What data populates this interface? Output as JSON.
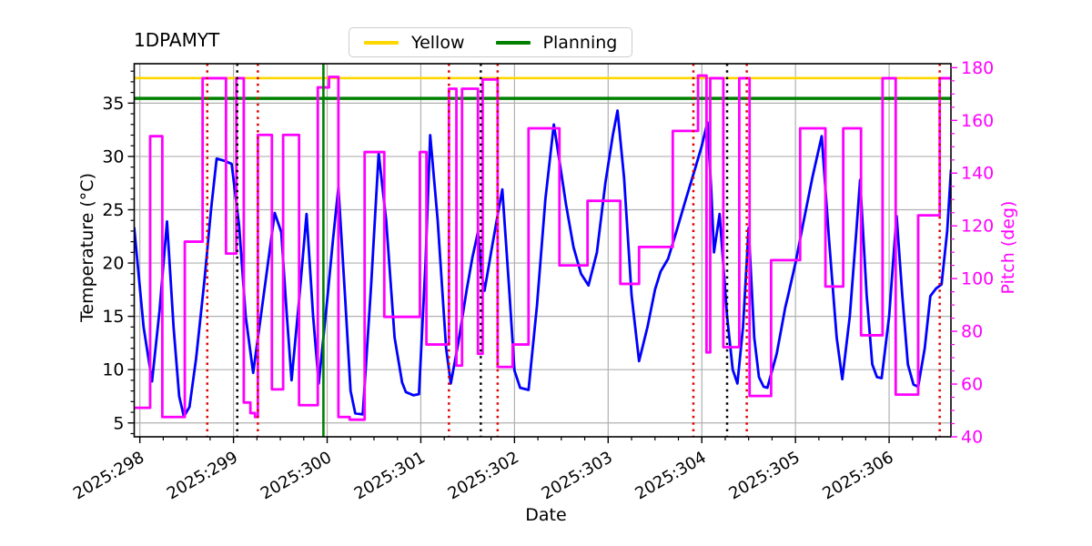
{
  "figure": {
    "title": "1DPAMYT"
  },
  "legend": {
    "entries": [
      {
        "label": "Yellow",
        "color": "#ffd700"
      },
      {
        "label": "Planning",
        "color": "#008000"
      }
    ]
  },
  "chart_data": {
    "type": "line",
    "title": "1DPAMYT",
    "xlabel": "Date",
    "x_axis": {
      "label": "Date",
      "range": [
        297.94,
        306.66
      ],
      "major_ticks": [
        298,
        299,
        300,
        301,
        302,
        303,
        304,
        305,
        306
      ],
      "tick_labels": [
        "2025:298",
        "2025:299",
        "2025:300",
        "2025:301",
        "2025:302",
        "2025:303",
        "2025:304",
        "2025:305",
        "2025:306"
      ],
      "minor_step": 0.25,
      "tick_rotation": -30
    },
    "y_left": {
      "label": "Temperature (°C)",
      "color": "#000000",
      "range": [
        3.7,
        38.7
      ],
      "major_ticks": [
        5,
        10,
        15,
        20,
        25,
        30,
        35
      ],
      "minor_step": 1
    },
    "y_right": {
      "label": "Pitch (deg)",
      "color": "#ff00ff",
      "range": [
        40,
        181.5
      ],
      "major_ticks": [
        40,
        60,
        80,
        100,
        120,
        140,
        160,
        180
      ],
      "minor_step": 5
    },
    "grid": {
      "show": true,
      "color": "#b0b0b0"
    },
    "hlines": [
      {
        "name": "yellow-limit",
        "label": "Yellow",
        "axis": "left",
        "y": 37.35,
        "color": "#ffd700",
        "width": 2.6,
        "style": "solid"
      },
      {
        "name": "planning-limit",
        "label": "Planning",
        "axis": "left",
        "y": 35.45,
        "color": "#008000",
        "width": 3.5,
        "style": "solid"
      }
    ],
    "vlines": [
      {
        "x": 299.96,
        "color": "#008000",
        "style": "solid",
        "width": 2.6
      },
      {
        "x": 298.72,
        "color": "#e00000",
        "style": "dotted",
        "width": 2.5
      },
      {
        "x": 299.26,
        "color": "#e00000",
        "style": "dotted",
        "width": 2.5
      },
      {
        "x": 301.3,
        "color": "#e00000",
        "style": "dotted",
        "width": 2.5
      },
      {
        "x": 301.82,
        "color": "#e00000",
        "style": "dotted",
        "width": 2.5
      },
      {
        "x": 303.91,
        "color": "#e00000",
        "style": "dotted",
        "width": 2.5
      },
      {
        "x": 304.48,
        "color": "#e00000",
        "style": "dotted",
        "width": 2.5
      },
      {
        "x": 306.54,
        "color": "#e00000",
        "style": "dotted",
        "width": 2.5
      },
      {
        "x": 299.04,
        "color": "#000000",
        "style": "dotted",
        "width": 2.5
      },
      {
        "x": 301.64,
        "color": "#000000",
        "style": "dotted",
        "width": 2.5
      },
      {
        "x": 304.27,
        "color": "#000000",
        "style": "dotted",
        "width": 2.5
      }
    ],
    "series": [
      {
        "name": "temperature",
        "axis": "left",
        "color": "#0000ff",
        "mode": "linear",
        "width": 2.8,
        "points": [
          [
            297.94,
            23.3
          ],
          [
            298.04,
            14
          ],
          [
            298.13,
            8.9
          ],
          [
            298.21,
            15.5
          ],
          [
            298.29,
            23.9
          ],
          [
            298.36,
            14
          ],
          [
            298.42,
            7.5
          ],
          [
            298.47,
            5.6
          ],
          [
            298.53,
            6.5
          ],
          [
            298.6,
            11
          ],
          [
            298.69,
            18.4
          ],
          [
            298.76,
            25
          ],
          [
            298.82,
            29.8
          ],
          [
            298.9,
            29.6
          ],
          [
            298.98,
            29.3
          ],
          [
            299.06,
            23.5
          ],
          [
            299.13,
            15
          ],
          [
            299.21,
            9.7
          ],
          [
            299.33,
            17.5
          ],
          [
            299.44,
            24.7
          ],
          [
            299.51,
            22.9
          ],
          [
            299.57,
            15
          ],
          [
            299.62,
            9.0
          ],
          [
            299.7,
            16.5
          ],
          [
            299.78,
            24.6
          ],
          [
            299.85,
            15
          ],
          [
            299.91,
            8.7
          ],
          [
            300.0,
            16.5
          ],
          [
            300.06,
            22
          ],
          [
            300.12,
            27.1
          ],
          [
            300.19,
            17
          ],
          [
            300.25,
            8
          ],
          [
            300.3,
            5.9
          ],
          [
            300.38,
            5.8
          ],
          [
            300.47,
            18
          ],
          [
            300.55,
            30.3
          ],
          [
            300.63,
            24
          ],
          [
            300.72,
            13
          ],
          [
            300.8,
            8.8
          ],
          [
            300.84,
            7.9
          ],
          [
            300.92,
            7.6
          ],
          [
            300.98,
            7.7
          ],
          [
            301.05,
            20
          ],
          [
            301.1,
            32.0
          ],
          [
            301.18,
            24
          ],
          [
            301.27,
            12
          ],
          [
            301.32,
            8.7
          ],
          [
            301.4,
            12.5
          ],
          [
            301.49,
            17.5
          ],
          [
            301.55,
            20.5
          ],
          [
            301.61,
            22.9
          ],
          [
            301.65,
            19
          ],
          [
            301.68,
            17.4
          ],
          [
            301.76,
            21.5
          ],
          [
            301.82,
            24.5
          ],
          [
            301.87,
            26.9
          ],
          [
            301.94,
            18
          ],
          [
            302.0,
            9.9
          ],
          [
            302.06,
            8.3
          ],
          [
            302.15,
            8.1
          ],
          [
            302.24,
            16
          ],
          [
            302.33,
            26
          ],
          [
            302.42,
            33.0
          ],
          [
            302.49,
            29
          ],
          [
            302.55,
            25.5
          ],
          [
            302.63,
            21.5
          ],
          [
            302.71,
            19
          ],
          [
            302.79,
            17.9
          ],
          [
            302.88,
            21
          ],
          [
            302.97,
            27.5
          ],
          [
            303.05,
            32
          ],
          [
            303.1,
            34.3
          ],
          [
            303.17,
            28
          ],
          [
            303.25,
            17
          ],
          [
            303.33,
            10.8
          ],
          [
            303.42,
            14
          ],
          [
            303.5,
            17.5
          ],
          [
            303.56,
            19.2
          ],
          [
            303.64,
            20.4
          ],
          [
            303.73,
            23
          ],
          [
            303.83,
            26
          ],
          [
            303.93,
            28.9
          ],
          [
            304.0,
            31
          ],
          [
            304.06,
            33.2
          ],
          [
            304.1,
            27
          ],
          [
            304.13,
            21.0
          ],
          [
            304.19,
            24.6
          ],
          [
            304.27,
            15
          ],
          [
            304.33,
            10
          ],
          [
            304.38,
            8.7
          ],
          [
            304.44,
            14
          ],
          [
            304.5,
            23.3
          ],
          [
            304.56,
            13
          ],
          [
            304.61,
            9.3
          ],
          [
            304.66,
            8.4
          ],
          [
            304.7,
            8.3
          ],
          [
            304.8,
            11.5
          ],
          [
            304.89,
            15.8
          ],
          [
            304.92,
            16.9
          ],
          [
            305.0,
            20
          ],
          [
            305.08,
            23.6
          ],
          [
            305.18,
            28
          ],
          [
            305.28,
            31.9
          ],
          [
            305.36,
            22
          ],
          [
            305.44,
            13
          ],
          [
            305.5,
            9.1
          ],
          [
            305.58,
            15
          ],
          [
            305.65,
            23
          ],
          [
            305.69,
            27.8
          ],
          [
            305.76,
            17
          ],
          [
            305.82,
            10.5
          ],
          [
            305.87,
            9.3
          ],
          [
            305.92,
            9.2
          ],
          [
            306.0,
            15
          ],
          [
            306.05,
            21
          ],
          [
            306.08,
            24.4
          ],
          [
            306.14,
            17
          ],
          [
            306.2,
            10.5
          ],
          [
            306.26,
            8.6
          ],
          [
            306.31,
            8.4
          ],
          [
            306.38,
            12
          ],
          [
            306.44,
            16.9
          ],
          [
            306.5,
            17.6
          ],
          [
            306.56,
            18.0
          ],
          [
            306.62,
            23
          ],
          [
            306.66,
            28.7
          ]
        ]
      },
      {
        "name": "pitch",
        "axis": "right",
        "color": "#ff00ff",
        "mode": "step-after",
        "width": 2.8,
        "points": [
          [
            297.94,
            51
          ],
          [
            298.11,
            154
          ],
          [
            298.24,
            47.5
          ],
          [
            298.48,
            114
          ],
          [
            298.67,
            176
          ],
          [
            298.92,
            109.5
          ],
          [
            299.03,
            176
          ],
          [
            299.11,
            53
          ],
          [
            299.18,
            49
          ],
          [
            299.23,
            47.5
          ],
          [
            299.26,
            154.5
          ],
          [
            299.41,
            58
          ],
          [
            299.53,
            154.5
          ],
          [
            299.7,
            52
          ],
          [
            299.9,
            172.5
          ],
          [
            300.02,
            176.5
          ],
          [
            300.12,
            47.5
          ],
          [
            300.24,
            46.5
          ],
          [
            300.4,
            148
          ],
          [
            300.61,
            85.5
          ],
          [
            300.99,
            148
          ],
          [
            301.06,
            75
          ],
          [
            301.3,
            172
          ],
          [
            301.38,
            67
          ],
          [
            301.44,
            172
          ],
          [
            301.61,
            71.5
          ],
          [
            301.66,
            175.5
          ],
          [
            301.82,
            66.5
          ],
          [
            301.98,
            75
          ],
          [
            302.15,
            157
          ],
          [
            302.48,
            105
          ],
          [
            302.78,
            129.5
          ],
          [
            303.13,
            98
          ],
          [
            303.33,
            112
          ],
          [
            303.69,
            156
          ],
          [
            303.96,
            177
          ],
          [
            304.05,
            72
          ],
          [
            304.09,
            176
          ],
          [
            304.23,
            74
          ],
          [
            304.4,
            176
          ],
          [
            304.51,
            55.5
          ],
          [
            304.74,
            107
          ],
          [
            305.05,
            157
          ],
          [
            305.32,
            97
          ],
          [
            305.51,
            157
          ],
          [
            305.7,
            78.5
          ],
          [
            305.93,
            176
          ],
          [
            306.07,
            56
          ],
          [
            306.31,
            124
          ],
          [
            306.54,
            176
          ]
        ]
      }
    ]
  }
}
